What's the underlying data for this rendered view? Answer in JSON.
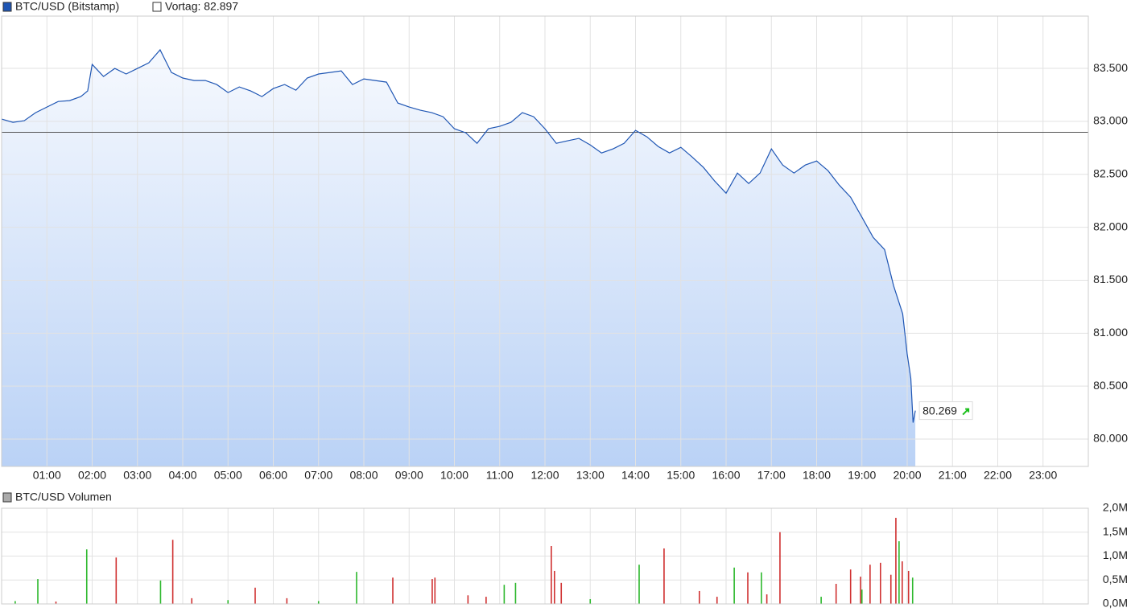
{
  "chart_data": [
    {
      "type": "line",
      "reference_line": {
        "value": 82897,
        "label": "Vortag: 82.897"
      },
      "x": [
        0,
        0.25,
        0.5,
        0.75,
        1,
        1.25,
        1.5,
        1.75,
        1.9,
        2,
        2.25,
        2.5,
        2.75,
        3,
        3.25,
        3.5,
        3.75,
        4,
        4.25,
        4.5,
        4.75,
        5,
        5.25,
        5.5,
        5.75,
        6,
        6.25,
        6.5,
        6.75,
        7,
        7.25,
        7.5,
        7.75,
        8,
        8.25,
        8.5,
        8.75,
        9,
        9.25,
        9.5,
        9.75,
        10,
        10.25,
        10.5,
        10.75,
        11,
        11.25,
        11.5,
        11.75,
        12,
        12.25,
        12.5,
        12.75,
        13,
        13.25,
        13.5,
        13.75,
        14,
        14.25,
        14.5,
        14.75,
        15,
        15.25,
        15.5,
        15.75,
        16,
        16.25,
        16.5,
        16.75,
        17,
        17.25,
        17.5,
        17.75,
        18,
        18.25,
        18.5,
        18.75,
        19,
        19.25,
        19.5,
        19.7,
        19.9,
        20,
        20.08,
        20.13,
        20.18
      ],
      "series": [
        {
          "name": "BTC/USD (Bitstamp)",
          "color": "#1f56b4",
          "last_label": "80.269",
          "values": [
            83021,
            82991,
            83006,
            83082,
            83135,
            83188,
            83196,
            83234,
            83287,
            83538,
            83424,
            83500,
            83447,
            83500,
            83553,
            83675,
            83462,
            83409,
            83386,
            83386,
            83348,
            83272,
            83325,
            83287,
            83234,
            83310,
            83348,
            83295,
            83409,
            83447,
            83462,
            83477,
            83348,
            83401,
            83386,
            83371,
            83173,
            83135,
            83105,
            83082,
            83044,
            82930,
            82892,
            82793,
            82930,
            82953,
            82991,
            83082,
            83044,
            82930,
            82793,
            82816,
            82839,
            82778,
            82702,
            82740,
            82793,
            82915,
            82854,
            82763,
            82702,
            82755,
            82664,
            82565,
            82436,
            82322,
            82512,
            82413,
            82512,
            82740,
            82588,
            82512,
            82588,
            82626,
            82535,
            82398,
            82284,
            82094,
            81904,
            81790,
            81448,
            81182,
            80802,
            80574,
            80156,
            80269
          ]
        }
      ],
      "xlim": [
        0,
        24
      ],
      "xticks": [
        {
          "value": 1,
          "label": "01:00"
        },
        {
          "value": 2,
          "label": "02:00"
        },
        {
          "value": 3,
          "label": "03:00"
        },
        {
          "value": 4,
          "label": "04:00"
        },
        {
          "value": 5,
          "label": "05:00"
        },
        {
          "value": 6,
          "label": "06:00"
        },
        {
          "value": 7,
          "label": "07:00"
        },
        {
          "value": 8,
          "label": "08:00"
        },
        {
          "value": 9,
          "label": "09:00"
        },
        {
          "value": 10,
          "label": "10:00"
        },
        {
          "value": 11,
          "label": "11:00"
        },
        {
          "value": 12,
          "label": "12:00"
        },
        {
          "value": 13,
          "label": "13:00"
        },
        {
          "value": 14,
          "label": "14:00"
        },
        {
          "value": 15,
          "label": "15:00"
        },
        {
          "value": 16,
          "label": "16:00"
        },
        {
          "value": 17,
          "label": "17:00"
        },
        {
          "value": 18,
          "label": "18:00"
        },
        {
          "value": 19,
          "label": "19:00"
        },
        {
          "value": 20,
          "label": "20:00"
        },
        {
          "value": 21,
          "label": "21:00"
        },
        {
          "value": 22,
          "label": "22:00"
        },
        {
          "value": 23,
          "label": "23:00"
        }
      ],
      "ylim": [
        79742,
        83994
      ],
      "yticks": [
        {
          "value": 80000,
          "label": "80.000"
        },
        {
          "value": 80500,
          "label": "80.500"
        },
        {
          "value": 81000,
          "label": "81.000"
        },
        {
          "value": 81500,
          "label": "81.500"
        },
        {
          "value": 82000,
          "label": "82.000"
        },
        {
          "value": 82500,
          "label": "82.500"
        },
        {
          "value": 83000,
          "label": "83.000"
        },
        {
          "value": 83500,
          "label": "83.500"
        }
      ],
      "grid": true
    },
    {
      "type": "bar",
      "title": "BTC/USD Volumen",
      "x": [
        0.3,
        0.8,
        1.2,
        1.88,
        2.53,
        3.51,
        3.78,
        4.2,
        5.0,
        5.6,
        6.3,
        7.0,
        7.84,
        8.64,
        9.51,
        9.57,
        10.3,
        10.7,
        11.1,
        11.35,
        12.14,
        12.21,
        12.36,
        13.0,
        14.08,
        14.63,
        15.41,
        15.8,
        16.18,
        16.48,
        16.78,
        16.9,
        17.19,
        18.1,
        18.43,
        18.75,
        18.97,
        19.0,
        19.18,
        19.41,
        19.64,
        19.75,
        19.82,
        19.89,
        20.03,
        20.12
      ],
      "values": [
        60000,
        520000,
        50000,
        1140000,
        970000,
        490000,
        1340000,
        120000,
        80000,
        340000,
        120000,
        60000,
        670000,
        550000,
        520000,
        550000,
        180000,
        150000,
        400000,
        440000,
        1210000,
        690000,
        440000,
        100000,
        820000,
        1160000,
        270000,
        150000,
        760000,
        660000,
        660000,
        200000,
        1500000,
        150000,
        420000,
        720000,
        570000,
        300000,
        820000,
        860000,
        610000,
        1800000,
        1310000,
        890000,
        690000,
        550000
      ],
      "colors": [
        "#2db82d",
        "#2db82d",
        "#d03030",
        "#2db82d",
        "#d03030",
        "#2db82d",
        "#d03030",
        "#d03030",
        "#2db82d",
        "#d03030",
        "#d03030",
        "#2db82d",
        "#2db82d",
        "#d03030",
        "#d03030",
        "#d03030",
        "#d03030",
        "#d03030",
        "#2db82d",
        "#2db82d",
        "#d03030",
        "#d03030",
        "#d03030",
        "#2db82d",
        "#2db82d",
        "#d03030",
        "#d03030",
        "#d03030",
        "#2db82d",
        "#d03030",
        "#2db82d",
        "#d03030",
        "#d03030",
        "#2db82d",
        "#d03030",
        "#d03030",
        "#d03030",
        "#2db82d",
        "#d03030",
        "#d03030",
        "#d03030",
        "#d03030",
        "#2db82d",
        "#d03030",
        "#d03030",
        "#2db82d"
      ],
      "xlim": [
        0,
        24
      ],
      "ylim": [
        0,
        2000000
      ],
      "yticks": [
        {
          "value": 0,
          "label": "0,0M"
        },
        {
          "value": 500000,
          "label": "0,5M"
        },
        {
          "value": 1000000,
          "label": "1,0M"
        },
        {
          "value": 1500000,
          "label": "1,5M"
        },
        {
          "value": 2000000,
          "label": "2,0M"
        }
      ],
      "grid": true
    }
  ]
}
